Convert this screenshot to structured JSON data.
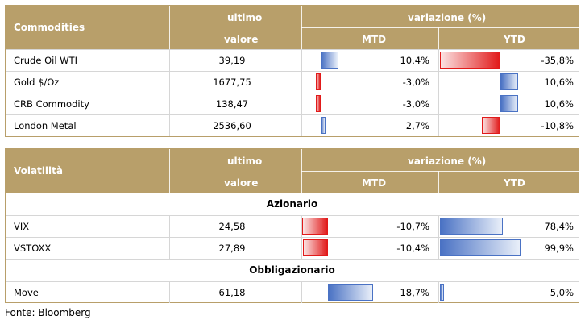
{
  "commodities": {
    "header": {
      "name": "Commodities",
      "col_ultimo": "ultimo",
      "col_valore": "valore",
      "col_variazione": "variazione (%)",
      "col_mtd": "MTD",
      "col_ytd": "YTD"
    },
    "rows": [
      {
        "name": "Crude Oil WTI",
        "value": "39,19",
        "mtd": "10,4%",
        "ytd": "-35,8%",
        "mtd_num": 10.4,
        "ytd_num": -35.8
      },
      {
        "name": "Gold $/Oz",
        "value": "1677,75",
        "mtd": "-3,0%",
        "ytd": "10,6%",
        "mtd_num": -3.0,
        "ytd_num": 10.6
      },
      {
        "name": "CRB Commodity",
        "value": "138,47",
        "mtd": "-3,0%",
        "ytd": "10,6%",
        "mtd_num": -3.0,
        "ytd_num": 10.6
      },
      {
        "name": "London Metal",
        "value": "2536,60",
        "mtd": "2,7%",
        "ytd": "-10,8%",
        "mtd_num": 2.7,
        "ytd_num": -10.8
      }
    ]
  },
  "volatility": {
    "header": {
      "name": "Volatilità",
      "col_ultimo": "ultimo",
      "col_valore": "valore",
      "col_variazione": "variazione (%)",
      "col_mtd": "MTD",
      "col_ytd": "YTD"
    },
    "section_equity": "Azionario",
    "equity_rows": [
      {
        "name": "VIX",
        "value": "24,58",
        "mtd": "-10,7%",
        "ytd": "78,4%",
        "mtd_num": -10.7,
        "ytd_num": 78.4
      },
      {
        "name": "VSTOXX",
        "value": "27,89",
        "mtd": "-10,4%",
        "ytd": "99,9%",
        "mtd_num": -10.4,
        "ytd_num": 99.9
      }
    ],
    "section_bond": "Obbligazionario",
    "bond_rows": [
      {
        "name": "Move",
        "value": "61,18",
        "mtd": "18,7%",
        "ytd": "5,0%",
        "mtd_num": 18.7,
        "ytd_num": 5.0
      }
    ]
  },
  "source": "Fonte: Bloomberg",
  "colors": {
    "header_bg": "#b89f6a",
    "positive": "#4a72c4",
    "negative": "#e11a1a"
  }
}
